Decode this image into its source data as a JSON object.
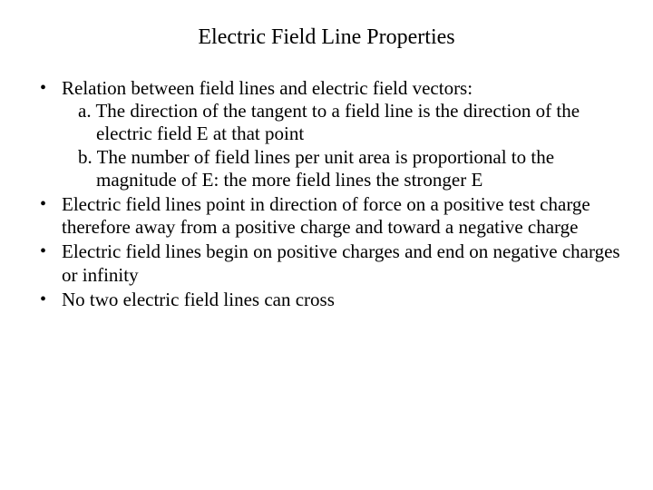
{
  "title": "Electric Field Line Properties",
  "bullets": {
    "b1": {
      "text": "Relation between field lines and electric field vectors:",
      "sub_a": "a. The direction of the tangent to a field line is the direction of the electric field E at that point",
      "sub_b": "b. The number of field lines per unit area is proportional to the magnitude of E:  the more field lines the stronger E"
    },
    "b2": "Electric field lines point in direction of force on a positive test charge therefore away from a positive charge and toward a negative charge",
    "b3": "Electric field lines begin on positive charges and end on negative charges or infinity",
    "b4": "No two electric field lines can cross"
  },
  "typography": {
    "title_fontsize": 24,
    "body_fontsize": 21,
    "font_family": "Times New Roman",
    "line_height": 1.2
  },
  "colors": {
    "background": "#ffffff",
    "text": "#000000"
  }
}
